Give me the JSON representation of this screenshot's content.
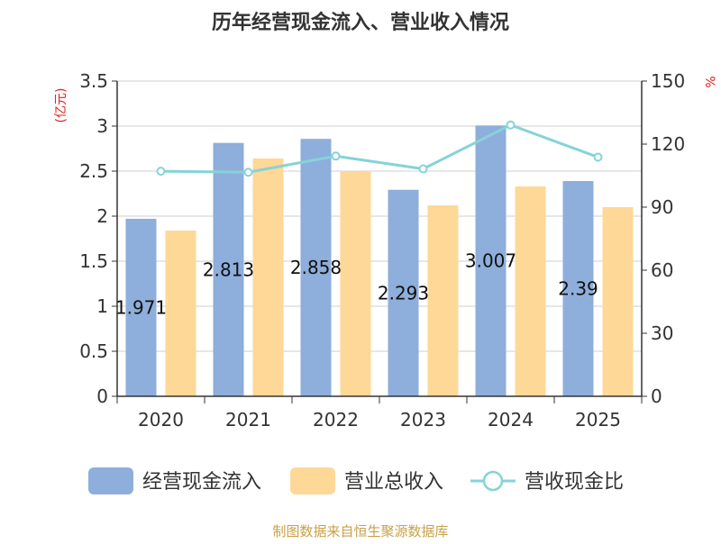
{
  "chart_data": {
    "type": "bar",
    "title": "历年经营现金流入、营业收入情况",
    "categories": [
      "2020",
      "2021",
      "2022",
      "2023",
      "2024",
      "2025"
    ],
    "series": [
      {
        "name": "经营现金流入",
        "type": "bar",
        "axis": "left",
        "color": "#8eaedb",
        "values": [
          1.971,
          2.813,
          2.858,
          2.293,
          3.007,
          2.39
        ],
        "labels": [
          "1.971",
          "2.813",
          "2.858",
          "2.293",
          "3.007",
          "2.39"
        ]
      },
      {
        "name": "营业总收入",
        "type": "bar",
        "axis": "left",
        "color": "#fed897",
        "values": [
          1.84,
          2.64,
          2.5,
          2.12,
          2.33,
          2.1
        ]
      },
      {
        "name": "营收现金比",
        "type": "line",
        "axis": "right",
        "color": "#86d3d8",
        "values": [
          107.1,
          106.6,
          114.3,
          108.2,
          129.1,
          113.8
        ]
      }
    ],
    "y_left": {
      "unit": "(亿元)",
      "ylim": [
        0,
        3.5
      ],
      "ticks": [
        "0",
        "0.5",
        "1",
        "1.5",
        "2",
        "2.5",
        "3",
        "3.5"
      ]
    },
    "y_right": {
      "unit": "%",
      "ylim": [
        0,
        150
      ],
      "ticks": [
        "0",
        "30",
        "60",
        "90",
        "120",
        "150"
      ]
    },
    "grid": true,
    "legend_position": "bottom",
    "source": "制图数据来自恒生聚源数据库"
  }
}
